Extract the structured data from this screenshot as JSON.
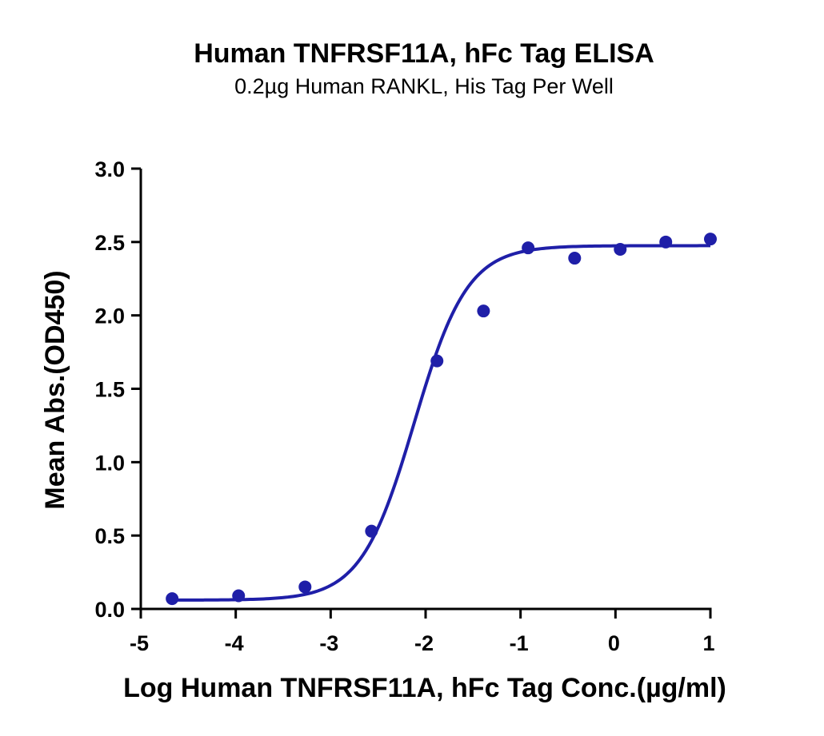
{
  "chart_data": {
    "type": "scatter",
    "title": "Human TNFRSF11A, hFc Tag ELISA",
    "subtitle": "0.2µg Human RANKL, His Tag Per Well",
    "xlabel": "Log Human TNFRSF11A, hFc Tag Conc.(µg/ml)",
    "ylabel": "Mean Abs.(OD450)",
    "xlim": [
      -5,
      1
    ],
    "ylim": [
      0,
      3.0
    ],
    "xticks": [
      "-5",
      "-4",
      "-3",
      "-2",
      "-1",
      "0",
      "1"
    ],
    "yticks": [
      "0.0",
      "0.5",
      "1.0",
      "1.5",
      "2.0",
      "2.5",
      "3.0"
    ],
    "grid": false,
    "legend": "none",
    "series": [
      {
        "x": [
          -4.67,
          -3.97,
          -3.27,
          -2.57,
          -1.88,
          -1.39,
          -0.92,
          -0.43,
          0.05,
          0.53,
          1.0
        ],
        "y": [
          0.07,
          0.09,
          0.15,
          0.53,
          1.69,
          2.03,
          2.46,
          2.39,
          2.45,
          2.5,
          2.52
        ],
        "color": "#1f1fa8"
      }
    ],
    "fit_curve": {
      "model": "4PL",
      "bottom": 0.06,
      "top": 2.475,
      "logEC50": -2.12,
      "hill": 1.55,
      "x_range": [
        -4.67,
        1.0
      ],
      "color": "#1f1fa8"
    }
  }
}
